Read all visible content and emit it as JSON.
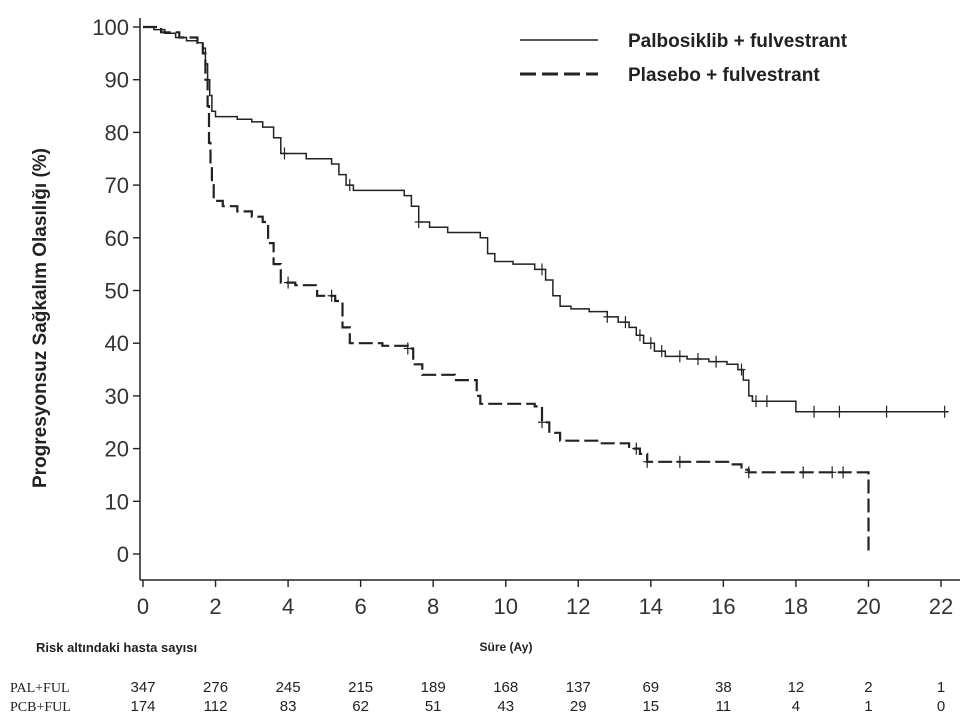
{
  "chart_data": {
    "type": "line",
    "ylabel": "Progresyonsuz Sağkalım Olasılığı (%)",
    "xlabel": "Süre (Ay)",
    "xlim": [
      0,
      22
    ],
    "ylim": [
      0,
      100
    ],
    "x_ticks": [
      0,
      2,
      4,
      6,
      8,
      10,
      12,
      14,
      16,
      18,
      20,
      22
    ],
    "y_ticks": [
      0,
      10,
      20,
      30,
      40,
      50,
      60,
      70,
      80,
      90,
      100
    ],
    "grid": false,
    "legend_position": "top-right",
    "series": [
      {
        "name": "Palbosiklib + fulvestrant",
        "line_style": "solid",
        "color": "#222222",
        "points": [
          [
            0,
            100
          ],
          [
            0.3,
            99.5
          ],
          [
            0.6,
            98.8
          ],
          [
            0.9,
            98
          ],
          [
            1.2,
            97.4
          ],
          [
            1.5,
            97
          ],
          [
            1.65,
            96
          ],
          [
            1.72,
            93
          ],
          [
            1.78,
            90
          ],
          [
            1.84,
            87
          ],
          [
            1.9,
            84
          ],
          [
            2.0,
            83
          ],
          [
            2.6,
            82.5
          ],
          [
            3.0,
            82
          ],
          [
            3.3,
            81
          ],
          [
            3.6,
            79
          ],
          [
            3.8,
            76
          ],
          [
            4.5,
            75
          ],
          [
            5.2,
            74
          ],
          [
            5.4,
            72
          ],
          [
            5.6,
            70
          ],
          [
            5.8,
            69
          ],
          [
            7.2,
            68
          ],
          [
            7.4,
            66
          ],
          [
            7.6,
            63
          ],
          [
            7.9,
            62
          ],
          [
            8.4,
            61
          ],
          [
            9.3,
            60
          ],
          [
            9.5,
            57
          ],
          [
            9.7,
            55.5
          ],
          [
            10.2,
            55
          ],
          [
            10.8,
            54
          ],
          [
            11.1,
            52
          ],
          [
            11.3,
            49
          ],
          [
            11.5,
            47
          ],
          [
            11.8,
            46.5
          ],
          [
            12.3,
            46
          ],
          [
            12.8,
            45
          ],
          [
            13.1,
            44
          ],
          [
            13.4,
            43
          ],
          [
            13.6,
            41.5
          ],
          [
            13.8,
            40
          ],
          [
            14.1,
            38.5
          ],
          [
            14.4,
            37.5
          ],
          [
            15.0,
            37
          ],
          [
            15.6,
            36.5
          ],
          [
            16.1,
            36
          ],
          [
            16.4,
            35
          ],
          [
            16.55,
            33
          ],
          [
            16.7,
            30
          ],
          [
            16.8,
            29
          ],
          [
            17.6,
            29
          ],
          [
            18.0,
            27
          ],
          [
            22.2,
            27
          ]
        ],
        "censor_x": [
          3.9,
          5.7,
          7.6,
          11.0,
          12.8,
          13.3,
          13.7,
          14.0,
          14.3,
          14.8,
          15.3,
          15.8,
          16.5,
          16.9,
          17.2,
          18.5,
          19.2,
          20.5,
          22.1
        ]
      },
      {
        "name": "Plasebo + fulvestrant",
        "line_style": "dashed",
        "color": "#222222",
        "points": [
          [
            0,
            100
          ],
          [
            0.5,
            99
          ],
          [
            1.0,
            98
          ],
          [
            1.5,
            97
          ],
          [
            1.65,
            95
          ],
          [
            1.72,
            90
          ],
          [
            1.78,
            85
          ],
          [
            1.82,
            78
          ],
          [
            1.86,
            74
          ],
          [
            1.9,
            70
          ],
          [
            1.95,
            67
          ],
          [
            2.2,
            66
          ],
          [
            2.6,
            65
          ],
          [
            3.0,
            64
          ],
          [
            3.3,
            63
          ],
          [
            3.45,
            59
          ],
          [
            3.6,
            55
          ],
          [
            3.8,
            51.5
          ],
          [
            4.2,
            51
          ],
          [
            4.8,
            49
          ],
          [
            5.3,
            48
          ],
          [
            5.5,
            43
          ],
          [
            5.7,
            40
          ],
          [
            6.6,
            39.5
          ],
          [
            7.3,
            39
          ],
          [
            7.45,
            36
          ],
          [
            7.7,
            34
          ],
          [
            8.6,
            33
          ],
          [
            9.2,
            30
          ],
          [
            9.3,
            28.5
          ],
          [
            10.8,
            28
          ],
          [
            11.0,
            25
          ],
          [
            11.2,
            23
          ],
          [
            11.5,
            21.5
          ],
          [
            12.6,
            21
          ],
          [
            13.4,
            20
          ],
          [
            13.7,
            19
          ],
          [
            13.9,
            17.5
          ],
          [
            15.2,
            17.5
          ],
          [
            16.2,
            17
          ],
          [
            16.5,
            16
          ],
          [
            16.7,
            15.5
          ],
          [
            20.0,
            15.5
          ],
          [
            20.0,
            0
          ]
        ],
        "censor_x": [
          4.0,
          5.2,
          7.3,
          11.0,
          13.6,
          13.9,
          14.8,
          16.7,
          18.2,
          19.0,
          19.3
        ]
      }
    ]
  },
  "risk_table": {
    "title": "Risk altındaki hasta sayısı",
    "rows": [
      {
        "label": "PAL+FUL",
        "values": [
          "347",
          "276",
          "245",
          "215",
          "189",
          "168",
          "137",
          "69",
          "38",
          "12",
          "2",
          "1"
        ]
      },
      {
        "label": "PCB+FUL",
        "values": [
          "174",
          "112",
          "83",
          "62",
          "51",
          "43",
          "29",
          "15",
          "11",
          "4",
          "1",
          "0"
        ]
      }
    ]
  }
}
